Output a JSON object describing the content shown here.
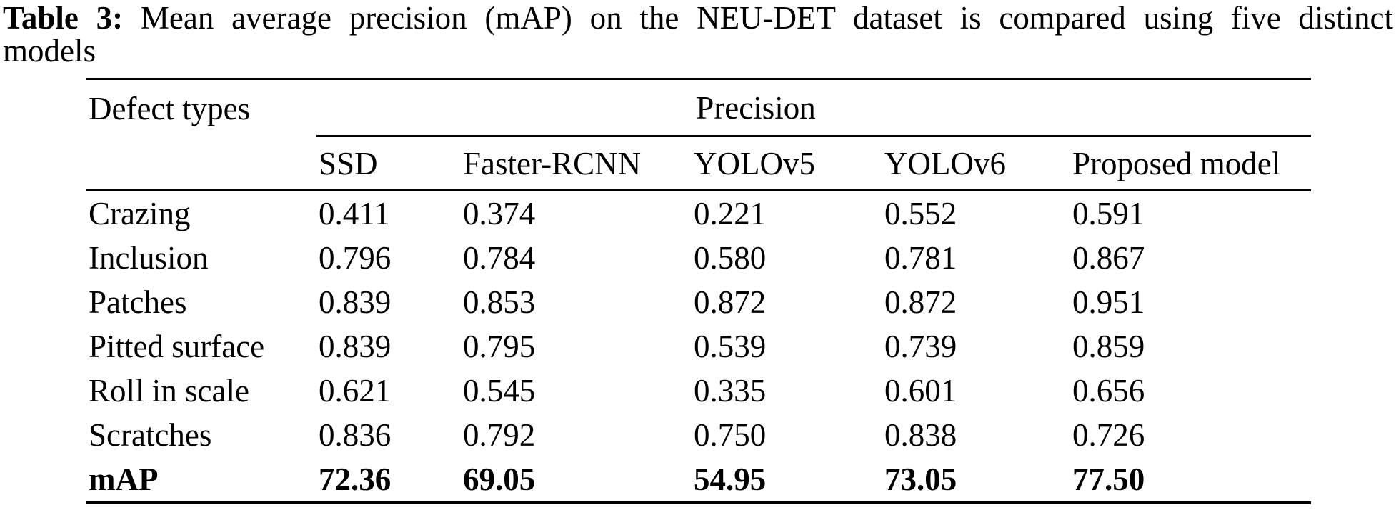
{
  "caption": {
    "label": "Table 3:",
    "line1_rest": "Mean average precision (mAP) on the NEU-DET dataset is compared using five distinct",
    "line2": "models"
  },
  "table": {
    "corner_header": "Defect types",
    "group_header": "Precision",
    "model_headers": [
      "SSD",
      "Faster-RCNN",
      "YOLOv5",
      "YOLOv6",
      "Proposed model"
    ],
    "rows": [
      {
        "defect": "Crazing",
        "values": [
          "0.411",
          "0.374",
          "0.221",
          "0.552",
          "0.591"
        ]
      },
      {
        "defect": "Inclusion",
        "values": [
          "0.796",
          "0.784",
          "0.580",
          "0.781",
          "0.867"
        ]
      },
      {
        "defect": "Patches",
        "values": [
          "0.839",
          "0.853",
          "0.872",
          "0.872",
          "0.951"
        ]
      },
      {
        "defect": "Pitted surface",
        "values": [
          "0.839",
          "0.795",
          "0.539",
          "0.739",
          "0.859"
        ]
      },
      {
        "defect": "Roll in scale",
        "values": [
          "0.621",
          "0.545",
          "0.335",
          "0.601",
          "0.656"
        ]
      },
      {
        "defect": "Scratches",
        "values": [
          "0.836",
          "0.792",
          "0.750",
          "0.838",
          "0.726"
        ]
      }
    ],
    "summary_row": {
      "label": "mAP",
      "values": [
        "72.36",
        "69.05",
        "54.95",
        "73.05",
        "77.50"
      ]
    }
  }
}
